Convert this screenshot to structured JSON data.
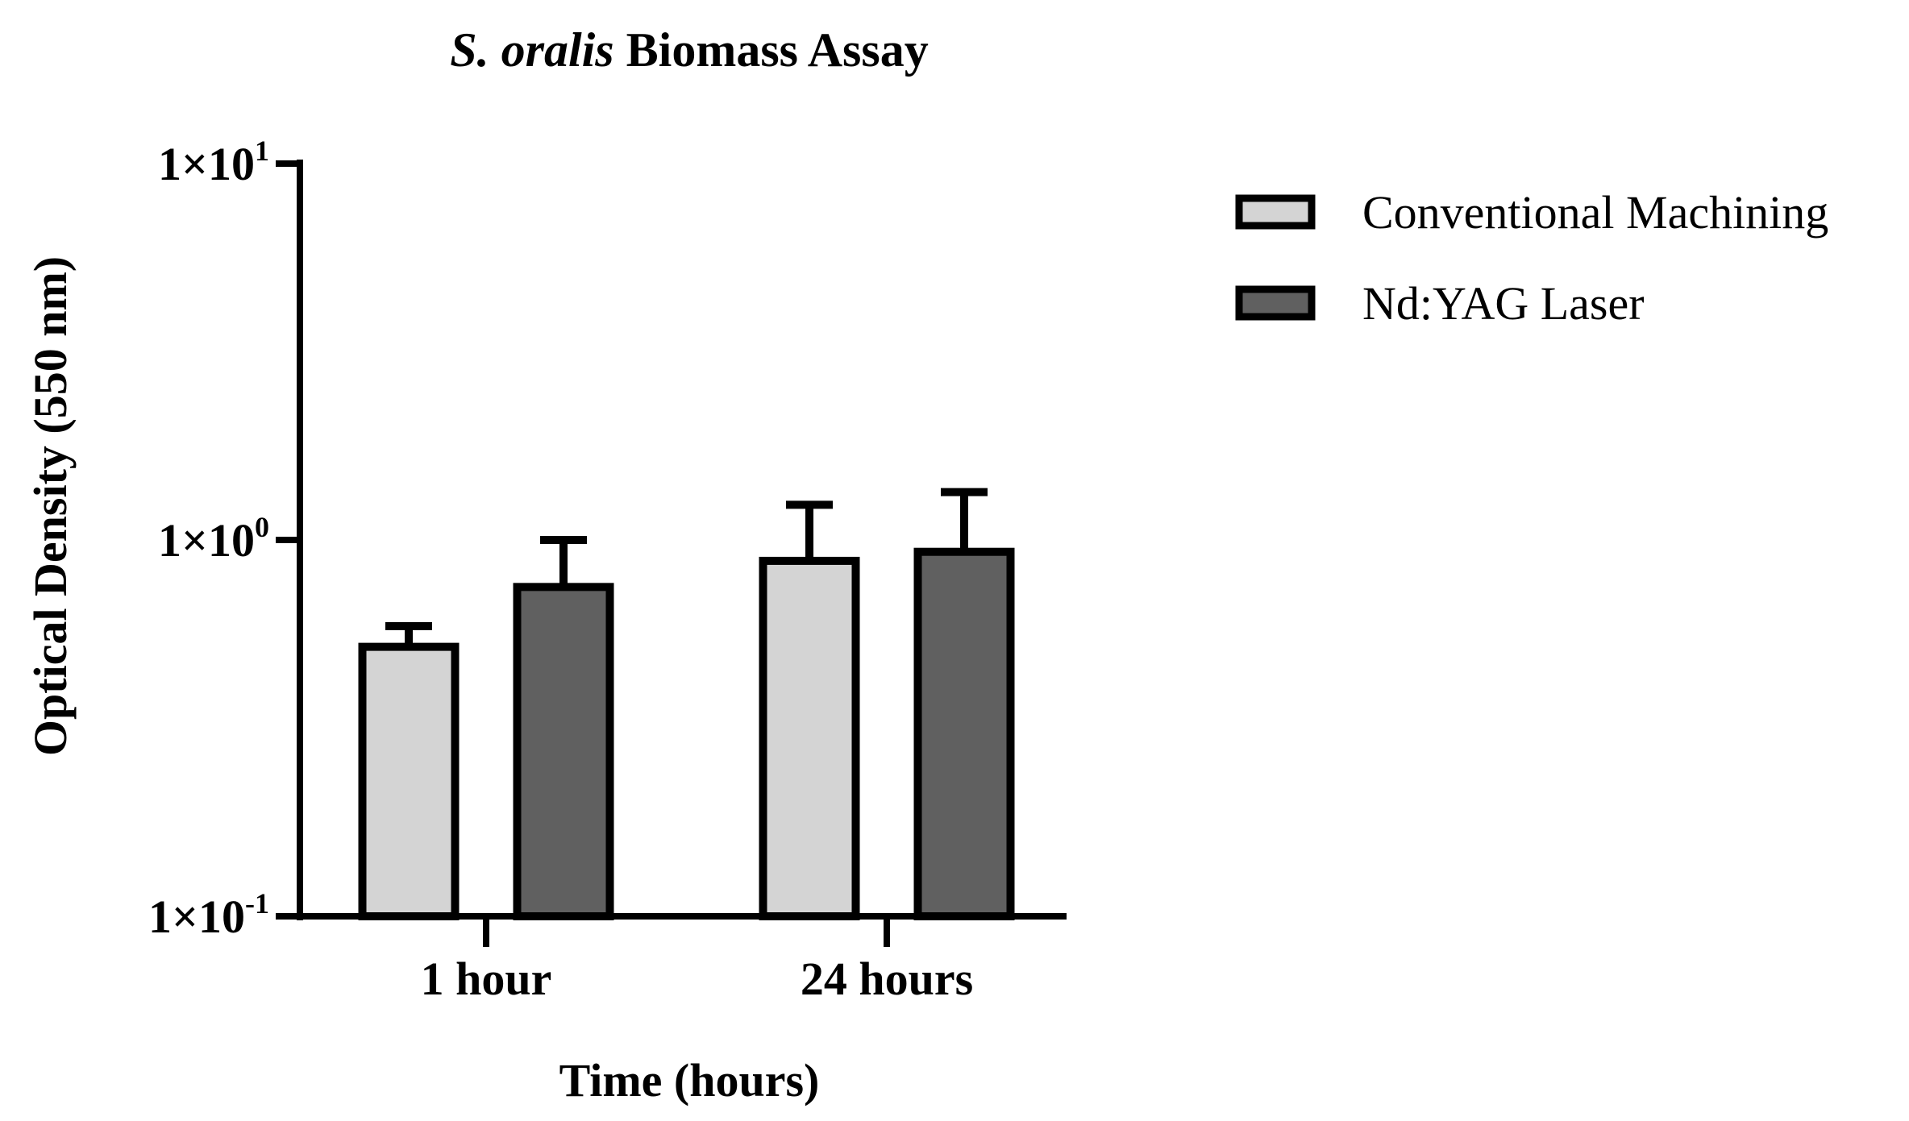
{
  "chart_data": {
    "type": "bar",
    "title_italic": "S. oralis",
    "title_rest": " Biomass Assay",
    "xlabel": "Time (hours)",
    "ylabel": "Optical Density (550 nm)",
    "y_scale": "log",
    "ylim": [
      0.1,
      10
    ],
    "y_ticks": [
      {
        "value": 10,
        "base": "1×10",
        "exp": "1"
      },
      {
        "value": 1,
        "base": "1×10",
        "exp": "0"
      },
      {
        "value": 0.1,
        "base": "1×10",
        "exp": "-1"
      }
    ],
    "categories": [
      "1 hour",
      "24 hours"
    ],
    "series": [
      {
        "name": "Conventional Machining",
        "color": "#d4d4d4",
        "values": [
          0.52,
          0.88
        ],
        "errors_upper": [
          0.59,
          1.24
        ]
      },
      {
        "name": "Nd:YAG Laser",
        "color": "#606060",
        "values": [
          0.75,
          0.93
        ],
        "errors_upper": [
          1.0,
          1.34
        ]
      }
    ],
    "legend_position": "top-right",
    "grid": false
  }
}
